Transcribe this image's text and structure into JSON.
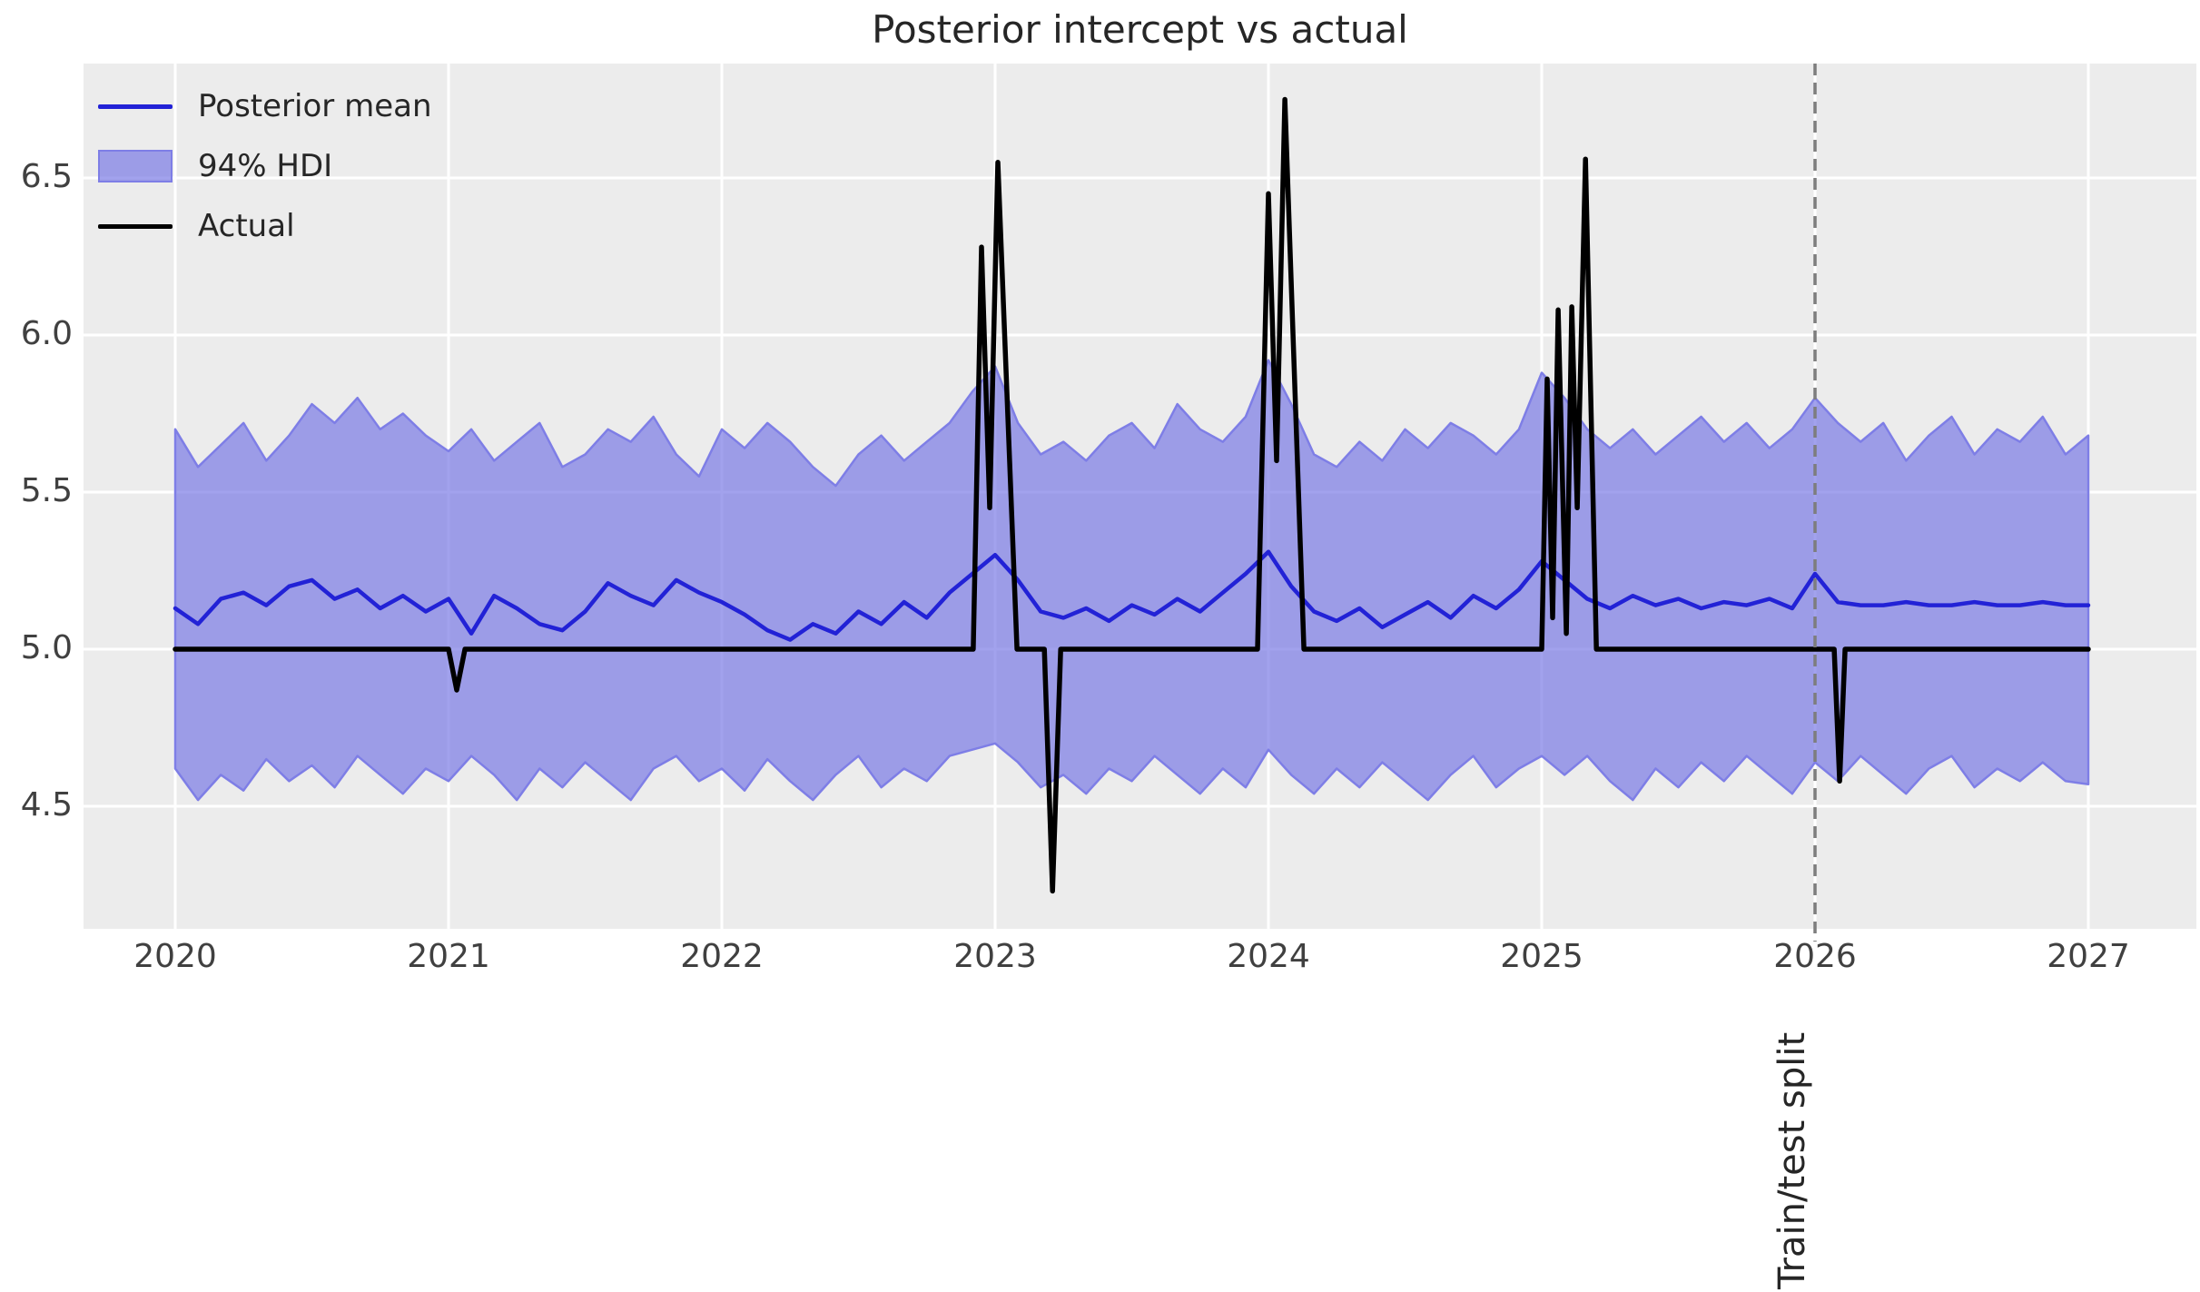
{
  "figure": {
    "title": "Posterior intercept vs actual",
    "background_color": "#ffffff",
    "plot_background_color": "#ececec",
    "grid_color": "#ffffff",
    "tick_label_color": "#404040",
    "text_color": "#262626"
  },
  "legend": {
    "items": [
      {
        "label": "Posterior mean",
        "swatch": "line",
        "color": "#2222d6"
      },
      {
        "label": "94% HDI",
        "swatch": "patch",
        "fill": "rgba(122,122,230,0.7)",
        "edge": "#7e7ee6"
      },
      {
        "label": "Actual",
        "swatch": "line",
        "color": "#000000"
      }
    ]
  },
  "annotations": {
    "train_test_split": {
      "label": "Train/test split",
      "x": 2026,
      "line_color": "#7d7d7d",
      "line_style": "dashed"
    }
  },
  "chart_data": {
    "type": "line",
    "title": "Posterior intercept vs actual",
    "xlabel": "",
    "ylabel": "",
    "xlim": [
      2019.66,
      2027.39
    ],
    "ylim": [
      4.11,
      6.86
    ],
    "x_ticks": [
      2020,
      2021,
      2022,
      2023,
      2024,
      2025,
      2026,
      2027
    ],
    "y_ticks": [
      4.5,
      5.0,
      5.5,
      6.0,
      6.5
    ],
    "grid": true,
    "legend_position": "upper left",
    "hdi_band": {
      "name": "94% HDI",
      "fill_color": "rgba(122,122,230,0.7)",
      "edge_color": "#7e7ee6",
      "x_start": 2020,
      "x_step_years": 0.0833333,
      "upper": [
        5.7,
        5.58,
        5.65,
        5.72,
        5.6,
        5.68,
        5.78,
        5.72,
        5.8,
        5.7,
        5.75,
        5.68,
        5.63,
        5.7,
        5.6,
        5.66,
        5.72,
        5.58,
        5.62,
        5.7,
        5.66,
        5.74,
        5.62,
        5.55,
        5.7,
        5.64,
        5.72,
        5.66,
        5.58,
        5.52,
        5.62,
        5.68,
        5.6,
        5.66,
        5.72,
        5.82,
        5.9,
        5.72,
        5.62,
        5.66,
        5.6,
        5.68,
        5.72,
        5.64,
        5.78,
        5.7,
        5.66,
        5.74,
        5.92,
        5.78,
        5.62,
        5.58,
        5.66,
        5.6,
        5.7,
        5.64,
        5.72,
        5.68,
        5.62,
        5.7,
        5.88,
        5.8,
        5.7,
        5.64,
        5.7,
        5.62,
        5.68,
        5.74,
        5.66,
        5.72,
        5.64,
        5.7,
        5.8,
        5.72,
        5.66,
        5.72,
        5.6,
        5.68,
        5.74,
        5.62,
        5.7,
        5.66,
        5.74,
        5.62,
        5.68
      ],
      "lower": [
        4.62,
        4.52,
        4.6,
        4.55,
        4.65,
        4.58,
        4.63,
        4.56,
        4.66,
        4.6,
        4.54,
        4.62,
        4.58,
        4.66,
        4.6,
        4.52,
        4.62,
        4.56,
        4.64,
        4.58,
        4.52,
        4.62,
        4.66,
        4.58,
        4.62,
        4.55,
        4.65,
        4.58,
        4.52,
        4.6,
        4.66,
        4.56,
        4.62,
        4.58,
        4.66,
        4.68,
        4.7,
        4.64,
        4.56,
        4.6,
        4.54,
        4.62,
        4.58,
        4.66,
        4.6,
        4.54,
        4.62,
        4.56,
        4.68,
        4.6,
        4.54,
        4.62,
        4.56,
        4.64,
        4.58,
        4.52,
        4.6,
        4.66,
        4.56,
        4.62,
        4.66,
        4.6,
        4.66,
        4.58,
        4.52,
        4.62,
        4.56,
        4.64,
        4.58,
        4.66,
        4.6,
        4.54,
        4.64,
        4.58,
        4.66,
        4.6,
        4.54,
        4.62,
        4.66,
        4.56,
        4.62,
        4.58,
        4.64,
        4.58,
        4.57
      ]
    },
    "series": [
      {
        "name": "Posterior mean",
        "color": "#2222d6",
        "x_start": 2020,
        "x_step_years": 0.0833333,
        "values": [
          5.13,
          5.08,
          5.16,
          5.18,
          5.14,
          5.2,
          5.22,
          5.16,
          5.19,
          5.13,
          5.17,
          5.12,
          5.16,
          5.05,
          5.17,
          5.13,
          5.08,
          5.06,
          5.12,
          5.21,
          5.17,
          5.14,
          5.22,
          5.18,
          5.15,
          5.11,
          5.06,
          5.03,
          5.08,
          5.05,
          5.12,
          5.08,
          5.15,
          5.1,
          5.18,
          5.24,
          5.3,
          5.22,
          5.12,
          5.1,
          5.13,
          5.09,
          5.14,
          5.11,
          5.16,
          5.12,
          5.18,
          5.24,
          5.31,
          5.2,
          5.12,
          5.09,
          5.13,
          5.07,
          5.11,
          5.15,
          5.1,
          5.17,
          5.13,
          5.19,
          5.28,
          5.22,
          5.16,
          5.13,
          5.17,
          5.14,
          5.16,
          5.13,
          5.15,
          5.14,
          5.16,
          5.13,
          5.24,
          5.15,
          5.14,
          5.14,
          5.15,
          5.14,
          5.14,
          5.15,
          5.14,
          5.14,
          5.15,
          5.14,
          5.14
        ]
      },
      {
        "name": "Actual",
        "color": "#000000",
        "points": [
          [
            2020.0,
            5.0
          ],
          [
            2021.0,
            5.0
          ],
          [
            2021.03,
            4.87
          ],
          [
            2021.06,
            5.0
          ],
          [
            2022.92,
            5.0
          ],
          [
            2022.95,
            6.28
          ],
          [
            2022.98,
            5.45
          ],
          [
            2023.01,
            6.55
          ],
          [
            2023.08,
            5.0
          ],
          [
            2023.18,
            5.0
          ],
          [
            2023.21,
            4.23
          ],
          [
            2023.24,
            5.0
          ],
          [
            2023.96,
            5.0
          ],
          [
            2024.0,
            6.45
          ],
          [
            2024.03,
            5.6
          ],
          [
            2024.06,
            6.75
          ],
          [
            2024.13,
            5.0
          ],
          [
            2025.0,
            5.0
          ],
          [
            2025.02,
            5.86
          ],
          [
            2025.04,
            5.1
          ],
          [
            2025.06,
            6.08
          ],
          [
            2025.09,
            5.05
          ],
          [
            2025.11,
            6.09
          ],
          [
            2025.13,
            5.45
          ],
          [
            2025.16,
            6.56
          ],
          [
            2025.2,
            5.0
          ],
          [
            2026.07,
            5.0
          ],
          [
            2026.09,
            4.58
          ],
          [
            2026.11,
            5.0
          ],
          [
            2027.0,
            5.0
          ]
        ]
      }
    ]
  }
}
